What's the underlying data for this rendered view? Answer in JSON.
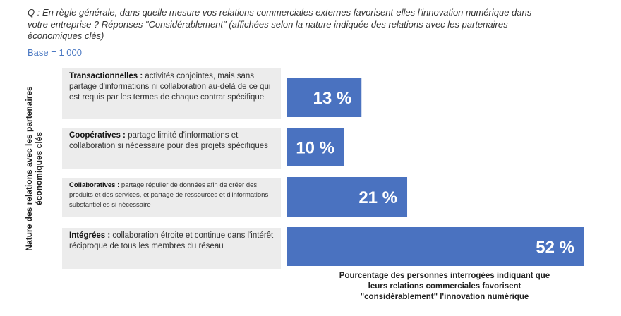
{
  "question": "Q : En règle générale, dans quelle mesure vos relations commerciales externes favorisent-elles l'innovation numérique dans votre entreprise ? Réponses \"Considérablement\" (affichées selon la nature indiquée des relations avec les partenaires économiques clés)",
  "base": "Base = 1 000",
  "colors": {
    "bar": "#4a72c0",
    "label_bg": "#ececec",
    "base_text": "#4a78c2"
  },
  "chart_data": {
    "type": "bar",
    "orientation": "horizontal",
    "ylabel": "Nature des relations avec les partenaires économiques clés",
    "xlabel": "Pourcentage des personnes interrogées indiquant que leurs relations commerciales favorisent \"considérablement\" l'innovation numérique",
    "categories": [
      {
        "name": "Transactionnelles :",
        "desc": " activités conjointes, mais sans partage d'informations ni collaboration au-delà de ce qui est requis par les termes de chaque contrat spécifique"
      },
      {
        "name": "Coopératives :",
        "desc": " partage limité d'informations et collaboration si nécessaire pour des projets spécifiques"
      },
      {
        "name": "Collaboratives :",
        "desc": " partage régulier de données afin de créer des produits et des services, et partage de ressources et d'informations substantielles si nécessaire"
      },
      {
        "name": "Intégrées :",
        "desc": " collaboration étroite et continue dans l'intérêt réciproque de tous les membres du réseau"
      }
    ],
    "values": [
      13,
      10,
      21,
      52
    ],
    "value_labels": [
      "13 %",
      "10 %",
      "21 %",
      "52 %"
    ],
    "unit": "%",
    "xlim": [
      0,
      52
    ]
  }
}
